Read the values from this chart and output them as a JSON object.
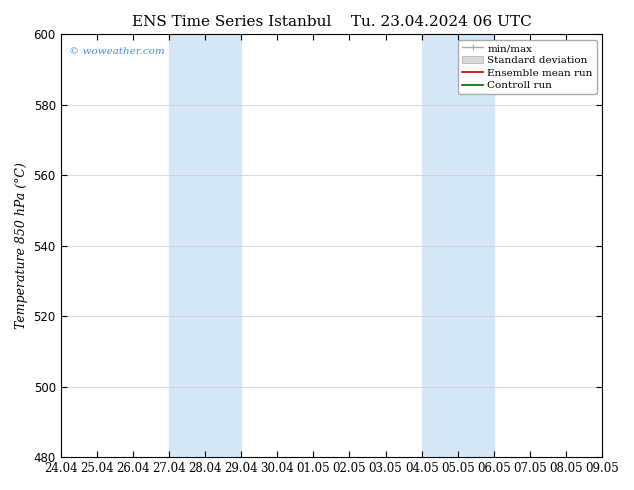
{
  "title": "ENS Time Series Istanbul",
  "title2": "Tu. 23.04.2024 06 UTC",
  "ylabel": "Temperature 850 hPa (°C)",
  "ylim": [
    480,
    600
  ],
  "yticks": [
    480,
    500,
    520,
    540,
    560,
    580,
    600
  ],
  "xtick_labels": [
    "24.04",
    "25.04",
    "26.04",
    "27.04",
    "28.04",
    "29.04",
    "30.04",
    "01.05",
    "02.05",
    "03.05",
    "04.05",
    "05.05",
    "06.05",
    "07.05",
    "08.05",
    "09.05"
  ],
  "shaded_color": "#d6e8f7",
  "watermark": "© woweather.com",
  "watermark_color": "#4a90d9",
  "legend_items": [
    "min/max",
    "Standard deviation",
    "Ensemble mean run",
    "Controll run"
  ],
  "background_color": "#ffffff",
  "spine_color": "#000000",
  "title_fontsize": 11,
  "label_fontsize": 9,
  "tick_fontsize": 8.5,
  "legend_fontsize": 7.5
}
